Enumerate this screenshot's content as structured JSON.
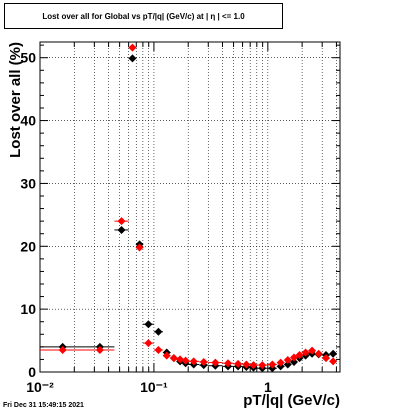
{
  "title": "Lost over all for Global vs pT/|q| (GeV/c) at |  η | <= 1.0",
  "footer_timestamp": "Fri Dec 31 15:49:15 2021",
  "chart_data": {
    "type": "scatter",
    "title": "Lost over all for Global vs pT/|q| (GeV/c) at |  η | <= 1.0",
    "xlabel": "pT/|q| (GeV/c)",
    "ylabel": "Lost over all (%)",
    "x_scale": "log",
    "xlim": [
      0.01,
      4.3
    ],
    "ylim": [
      0,
      52.5
    ],
    "grid": true,
    "x_tick_labels": [
      "10⁻²",
      "10⁻¹",
      "1"
    ],
    "y_tick_labels": [
      "0",
      "10",
      "20",
      "30",
      "40",
      "50"
    ],
    "series": [
      {
        "color": "#000000",
        "marker": "diamond",
        "points": [
          [
            0.01,
            0.025,
            4.0
          ],
          [
            0.025,
            0.045,
            4.0
          ],
          [
            0.045,
            0.06,
            22.6
          ],
          [
            0.06,
            0.07,
            49.9
          ],
          [
            0.07,
            0.08,
            20.3
          ],
          [
            0.08,
            0.1,
            7.6
          ],
          [
            0.1,
            0.12,
            6.4
          ],
          [
            0.12,
            0.14,
            3.1
          ],
          [
            0.14,
            0.16,
            2.2
          ],
          [
            0.16,
            0.18,
            1.7
          ],
          [
            0.18,
            0.2,
            1.4
          ],
          [
            0.2,
            0.25,
            1.2
          ],
          [
            0.25,
            0.3,
            1.1
          ],
          [
            0.3,
            0.4,
            1.0
          ],
          [
            0.4,
            0.5,
            0.9
          ],
          [
            0.5,
            0.6,
            0.9
          ],
          [
            0.6,
            0.7,
            0.8
          ],
          [
            0.7,
            0.8,
            0.7
          ],
          [
            0.8,
            1.0,
            0.6
          ],
          [
            1.0,
            1.2,
            0.6
          ],
          [
            1.2,
            1.4,
            0.9
          ],
          [
            1.4,
            1.6,
            1.2
          ],
          [
            1.6,
            1.8,
            1.6
          ],
          [
            1.8,
            2.0,
            2.2
          ],
          [
            2.0,
            2.3,
            2.6
          ],
          [
            2.3,
            2.6,
            2.9
          ],
          [
            2.6,
            3.0,
            2.8
          ],
          [
            3.0,
            3.5,
            2.7
          ],
          [
            3.5,
            4.0,
            2.9
          ]
        ]
      },
      {
        "color": "#ff0000",
        "marker": "diamond",
        "points": [
          [
            0.01,
            0.025,
            3.5
          ],
          [
            0.025,
            0.045,
            3.5
          ],
          [
            0.045,
            0.06,
            24.0
          ],
          [
            0.06,
            0.07,
            51.6
          ],
          [
            0.07,
            0.08,
            19.8
          ],
          [
            0.08,
            0.1,
            4.6
          ],
          [
            0.1,
            0.12,
            3.5
          ],
          [
            0.12,
            0.14,
            2.6
          ],
          [
            0.14,
            0.16,
            2.2
          ],
          [
            0.16,
            0.18,
            2.0
          ],
          [
            0.18,
            0.2,
            1.8
          ],
          [
            0.2,
            0.25,
            1.7
          ],
          [
            0.25,
            0.3,
            1.6
          ],
          [
            0.3,
            0.4,
            1.5
          ],
          [
            0.4,
            0.5,
            1.4
          ],
          [
            0.5,
            0.6,
            1.3
          ],
          [
            0.6,
            0.7,
            1.2
          ],
          [
            0.7,
            0.8,
            1.1
          ],
          [
            0.8,
            1.0,
            1.1
          ],
          [
            1.0,
            1.2,
            1.2
          ],
          [
            1.2,
            1.4,
            1.5
          ],
          [
            1.4,
            1.6,
            1.9
          ],
          [
            1.6,
            1.8,
            2.3
          ],
          [
            1.8,
            2.0,
            2.7
          ],
          [
            2.0,
            2.3,
            3.1
          ],
          [
            2.3,
            2.6,
            3.4
          ],
          [
            2.6,
            3.0,
            2.9
          ],
          [
            3.0,
            3.5,
            2.2
          ],
          [
            3.5,
            4.0,
            1.7
          ]
        ]
      }
    ]
  }
}
